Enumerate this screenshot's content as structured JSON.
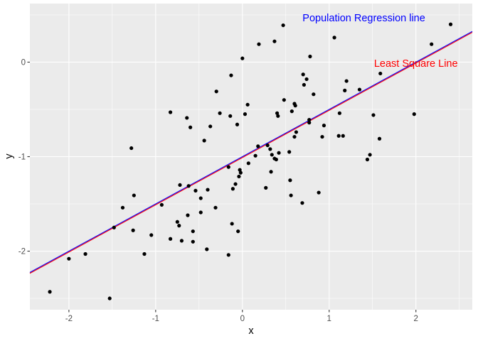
{
  "chart_data": {
    "type": "scatter",
    "xlabel": "x",
    "ylabel": "y",
    "xlim": [
      -2.45,
      2.65
    ],
    "ylim": [
      -2.62,
      0.62
    ],
    "x_ticks": [
      -2,
      -1,
      0,
      1,
      2
    ],
    "y_ticks": [
      -2,
      -1,
      0
    ],
    "x_tick_labels": [
      "-2",
      "-1",
      "0",
      "1",
      "2"
    ],
    "y_tick_labels": [
      "-2",
      "-1",
      "0"
    ],
    "grid": true,
    "panel_color": "#ebebeb",
    "grid_color": "#ffffff",
    "point_color": "#000000",
    "points": [
      [
        -2.22,
        -2.43
      ],
      [
        -2.0,
        -2.08
      ],
      [
        -1.81,
        -2.03
      ],
      [
        -1.53,
        -2.5
      ],
      [
        -1.48,
        -1.75
      ],
      [
        -1.38,
        -1.54
      ],
      [
        -1.28,
        -0.91
      ],
      [
        -1.25,
        -1.41
      ],
      [
        -1.26,
        -1.78
      ],
      [
        -1.13,
        -2.03
      ],
      [
        -1.05,
        -1.83
      ],
      [
        -0.93,
        -1.51
      ],
      [
        -0.83,
        -1.87
      ],
      [
        -0.83,
        -0.53
      ],
      [
        -0.75,
        -1.69
      ],
      [
        -0.73,
        -1.73
      ],
      [
        -0.72,
        -1.3
      ],
      [
        -0.7,
        -1.89
      ],
      [
        -0.64,
        -0.59
      ],
      [
        -0.63,
        -1.62
      ],
      [
        -0.62,
        -1.31
      ],
      [
        -0.6,
        -0.69
      ],
      [
        -0.57,
        -1.9
      ],
      [
        -0.57,
        -1.79
      ],
      [
        -0.54,
        -1.36
      ],
      [
        -0.48,
        -1.44
      ],
      [
        -0.48,
        -1.59
      ],
      [
        -0.44,
        -0.83
      ],
      [
        -0.41,
        -1.98
      ],
      [
        -0.4,
        -1.35
      ],
      [
        -0.37,
        -0.68
      ],
      [
        -0.31,
        -1.54
      ],
      [
        -0.3,
        -0.31
      ],
      [
        -0.26,
        -0.54
      ],
      [
        -0.16,
        -1.11
      ],
      [
        -0.16,
        -2.04
      ],
      [
        -0.14,
        -0.57
      ],
      [
        -0.13,
        -0.14
      ],
      [
        -0.12,
        -1.71
      ],
      [
        -0.11,
        -1.34
      ],
      [
        -0.08,
        -1.29
      ],
      [
        -0.06,
        -0.66
      ],
      [
        -0.05,
        -1.79
      ],
      [
        -0.04,
        -1.21
      ],
      [
        -0.03,
        -1.14
      ],
      [
        -0.02,
        -1.17
      ],
      [
        0.0,
        0.04
      ],
      [
        0.03,
        -0.55
      ],
      [
        0.06,
        -0.45
      ],
      [
        0.07,
        -1.07
      ],
      [
        0.15,
        -0.99
      ],
      [
        0.18,
        -0.89
      ],
      [
        0.19,
        0.19
      ],
      [
        0.27,
        -1.33
      ],
      [
        0.29,
        -0.88
      ],
      [
        0.32,
        -0.92
      ],
      [
        0.33,
        -1.16
      ],
      [
        0.34,
        -0.98
      ],
      [
        0.37,
        -1.02
      ],
      [
        0.37,
        0.22
      ],
      [
        0.39,
        -1.03
      ],
      [
        0.4,
        -0.54
      ],
      [
        0.41,
        -0.57
      ],
      [
        0.42,
        -0.96
      ],
      [
        0.47,
        0.39
      ],
      [
        0.48,
        -0.4
      ],
      [
        0.54,
        -0.95
      ],
      [
        0.55,
        -1.25
      ],
      [
        0.56,
        -1.41
      ],
      [
        0.57,
        -0.52
      ],
      [
        0.6,
        -0.44
      ],
      [
        0.6,
        -0.79
      ],
      [
        0.61,
        -0.46
      ],
      [
        0.62,
        -0.74
      ],
      [
        0.69,
        -1.49
      ],
      [
        0.7,
        -0.13
      ],
      [
        0.71,
        -0.24
      ],
      [
        0.74,
        -0.18
      ],
      [
        0.77,
        -0.61
      ],
      [
        0.77,
        -0.64
      ],
      [
        0.78,
        0.06
      ],
      [
        0.82,
        -0.34
      ],
      [
        0.88,
        -1.38
      ],
      [
        0.92,
        -0.79
      ],
      [
        0.94,
        -0.67
      ],
      [
        1.06,
        0.26
      ],
      [
        1.11,
        -0.78
      ],
      [
        1.12,
        -0.54
      ],
      [
        1.16,
        -0.78
      ],
      [
        1.18,
        -0.3
      ],
      [
        1.2,
        -0.2
      ],
      [
        1.35,
        -0.29
      ],
      [
        1.44,
        -1.03
      ],
      [
        1.47,
        -0.98
      ],
      [
        1.51,
        -0.56
      ],
      [
        1.58,
        -0.81
      ],
      [
        1.59,
        -0.12
      ],
      [
        1.98,
        -0.55
      ],
      [
        2.18,
        0.19
      ],
      [
        2.4,
        0.4
      ]
    ],
    "series": [
      {
        "name": "Population Regression line",
        "intercept": -1.0,
        "slope": 0.5,
        "color": "#0000ff"
      },
      {
        "name": "Least Square Line",
        "intercept": -1.01,
        "slope": 0.5,
        "color": "#ff0000"
      }
    ],
    "annotations": [
      {
        "text": "Population Regression line",
        "x": 1.4,
        "y": 0.47,
        "color": "#0000ff"
      },
      {
        "text": "Least Square Line",
        "x": 2.0,
        "y": -0.01,
        "color": "#ff0000"
      }
    ]
  }
}
